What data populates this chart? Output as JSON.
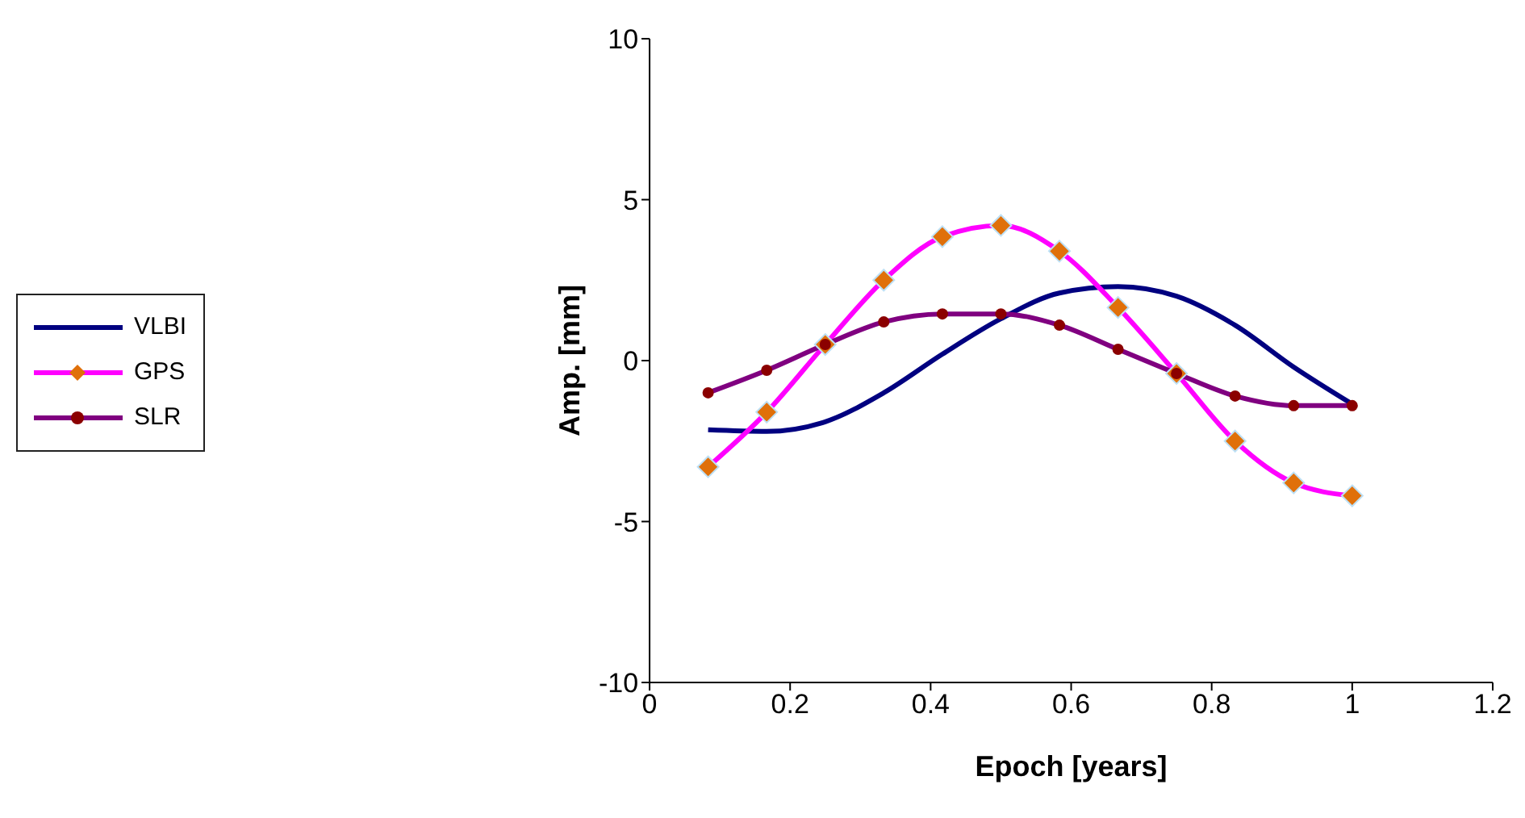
{
  "chart_data": {
    "type": "line",
    "xlabel": "Epoch [years]",
    "ylabel": "Amp. [mm]",
    "x": [
      0.0833,
      0.1667,
      0.25,
      0.3333,
      0.4167,
      0.5,
      0.5833,
      0.6667,
      0.75,
      0.8333,
      0.9167,
      1
    ],
    "xlim": [
      0,
      1.2
    ],
    "xticks": [
      0,
      0.2,
      0.4,
      0.6,
      0.8,
      1,
      1.2
    ],
    "ylim": [
      -10,
      10
    ],
    "yticks": [
      -10,
      -5,
      0,
      5,
      10
    ],
    "grid": false,
    "legend": "left",
    "series": [
      {
        "name": "VLBI",
        "color": "#000080",
        "marker": "none",
        "values": [
          -2.15,
          -2.2,
          -1.9,
          -1.0,
          0.2,
          1.3,
          2.1,
          2.3,
          2.0,
          1.1,
          -0.2,
          -1.35
        ]
      },
      {
        "name": "GPS",
        "color": "#ff00ff",
        "marker": "diamond",
        "values": [
          -3.3,
          -1.6,
          0.5,
          2.5,
          3.85,
          4.2,
          3.4,
          1.65,
          -0.4,
          -2.5,
          -3.8,
          -4.2
        ]
      },
      {
        "name": "SLR",
        "color": "#800080",
        "marker": "circle",
        "values": [
          -1.0,
          -0.3,
          0.5,
          1.2,
          1.45,
          1.45,
          1.1,
          0.35,
          -0.4,
          -1.1,
          -1.4,
          -1.4
        ]
      }
    ]
  }
}
